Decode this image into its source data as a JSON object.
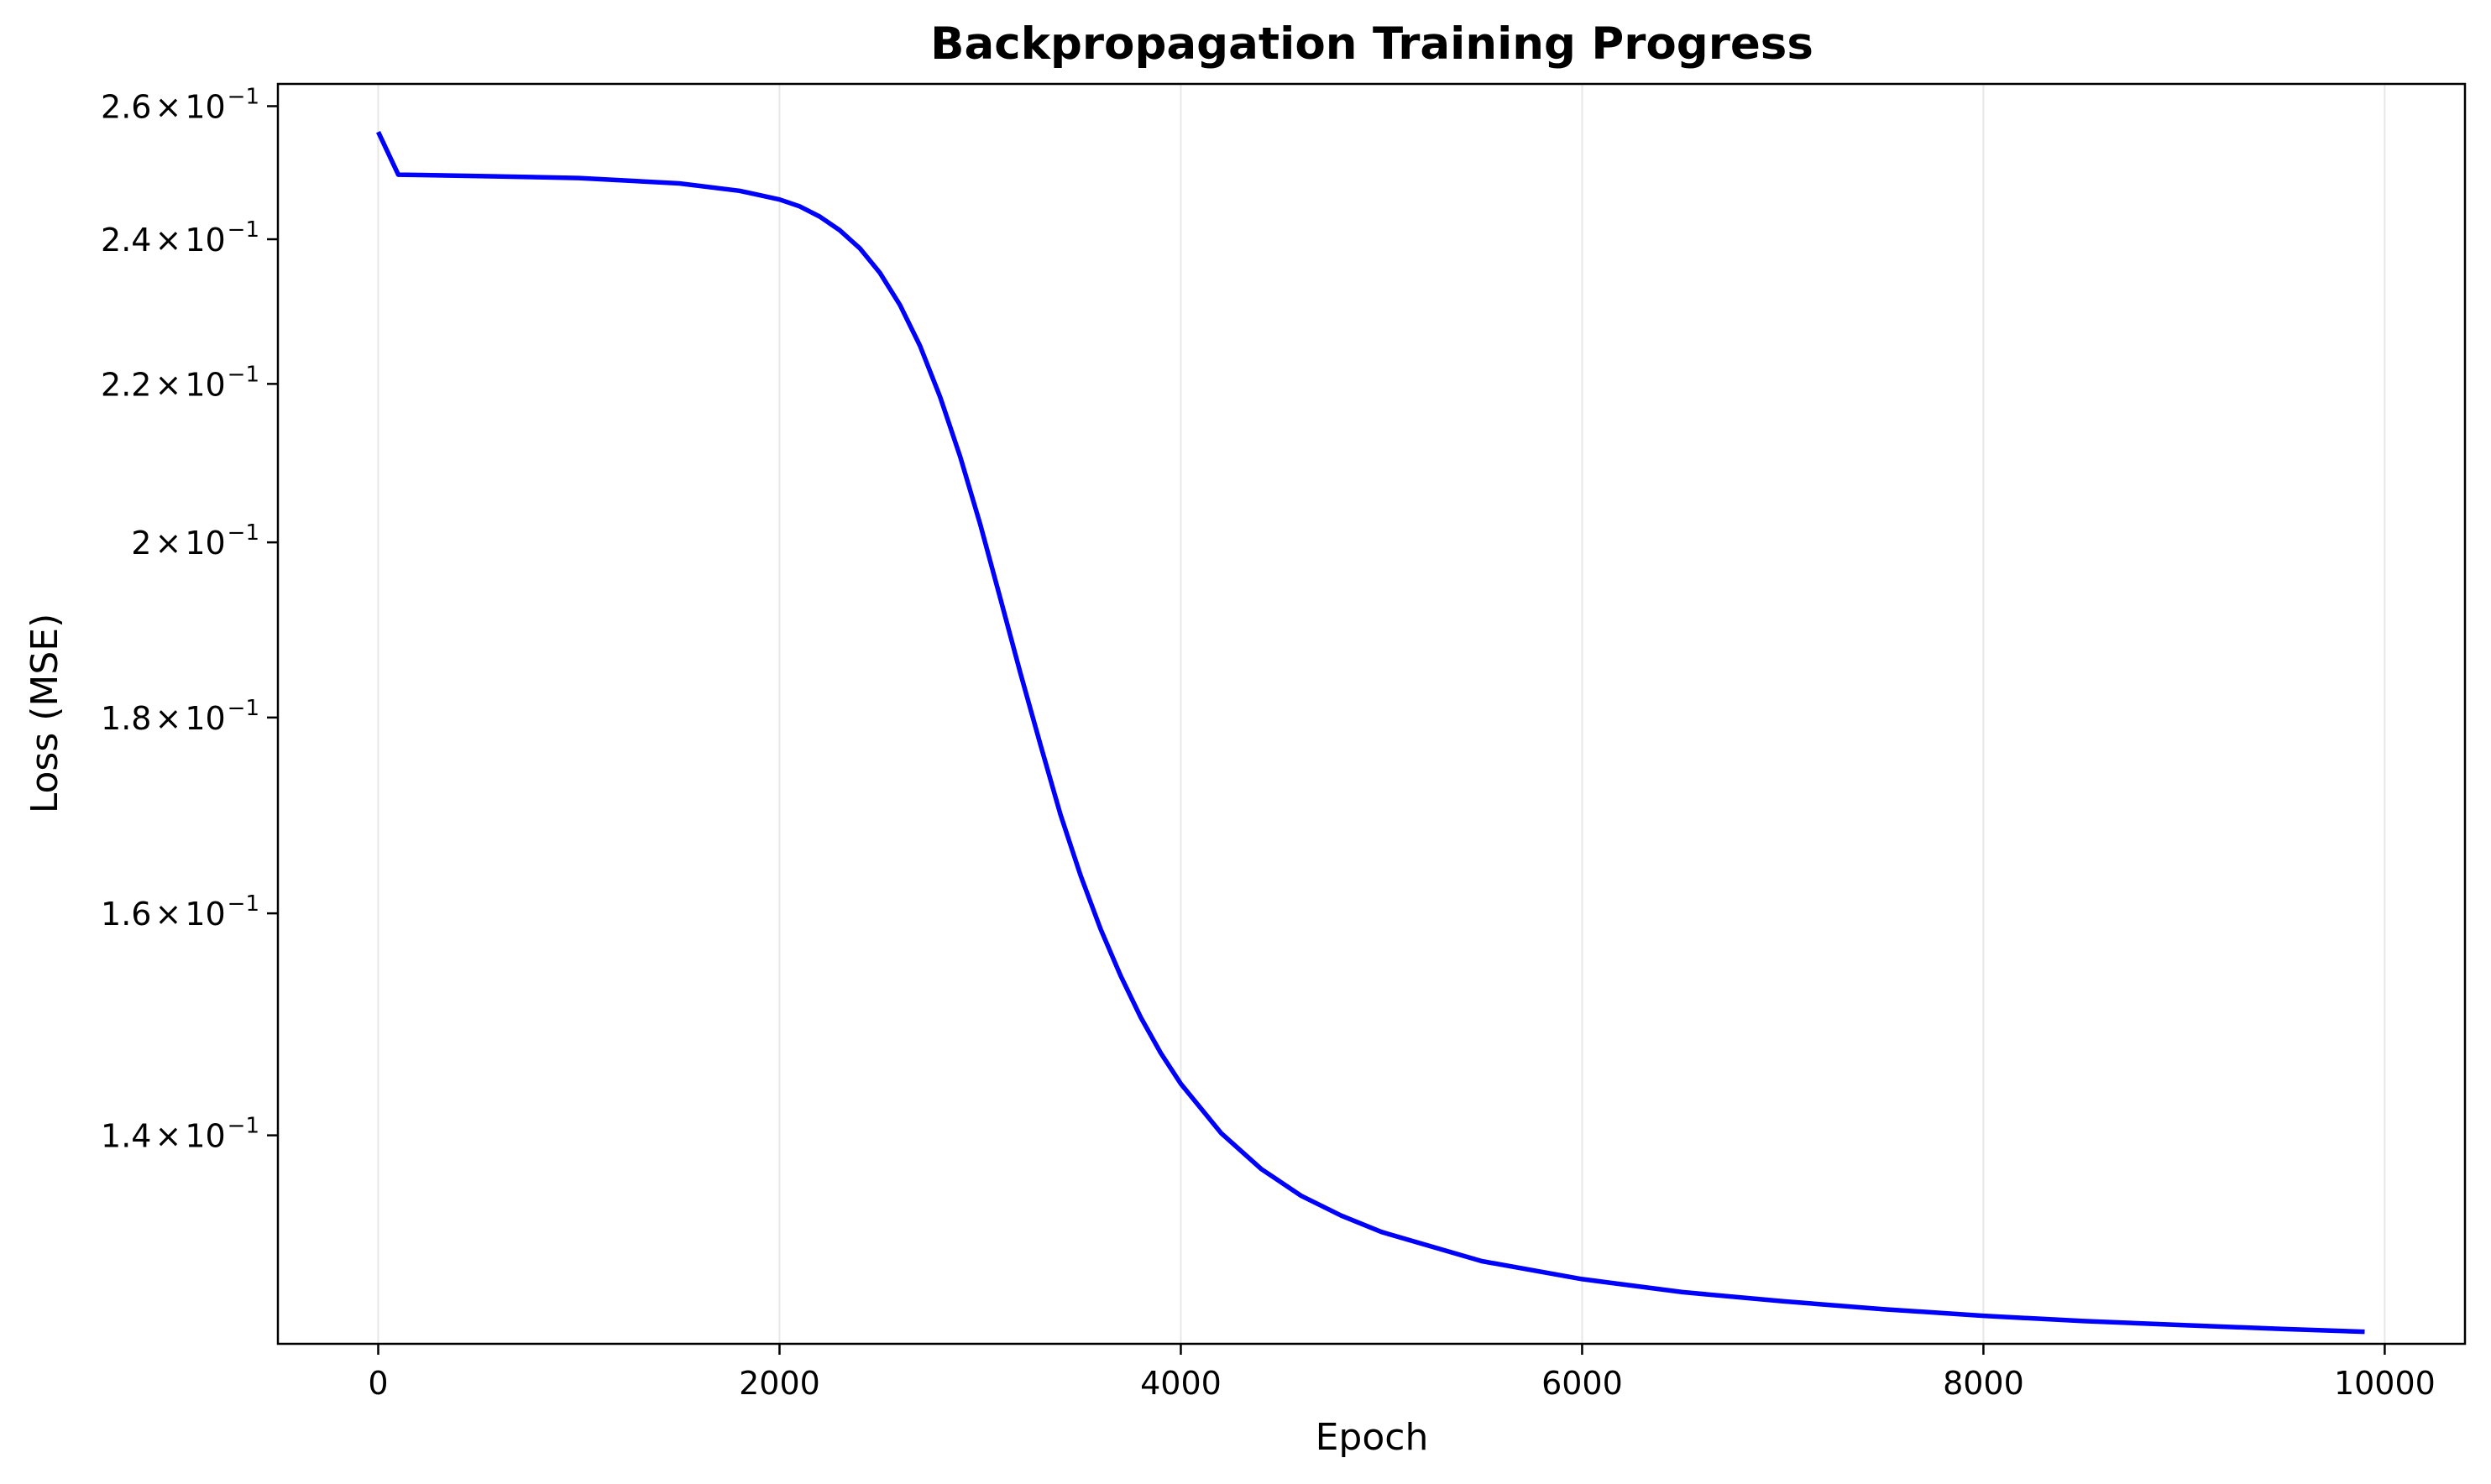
{
  "chart_data": {
    "type": "line",
    "title": "Backpropagation Training Progress",
    "xlabel": "Epoch",
    "ylabel": "Loss (MSE)",
    "yscale": "log",
    "grid": "x-axis only",
    "xlim": [
      -500,
      10400
    ],
    "ylim": [
      0.1235,
      0.2635
    ],
    "x_ticks": [
      {
        "value": 0,
        "label": "0"
      },
      {
        "value": 2000,
        "label": "2000"
      },
      {
        "value": 4000,
        "label": "4000"
      },
      {
        "value": 6000,
        "label": "6000"
      },
      {
        "value": 8000,
        "label": "8000"
      },
      {
        "value": 10000,
        "label": "10000"
      }
    ],
    "y_ticks": [
      {
        "value": 0.14,
        "mantissa": "1.4",
        "times": "×",
        "base": "10",
        "exponent": "−1"
      },
      {
        "value": 0.16,
        "mantissa": "1.6",
        "times": "×",
        "base": "10",
        "exponent": "−1"
      },
      {
        "value": 0.18,
        "mantissa": "1.8",
        "times": "×",
        "base": "10",
        "exponent": "−1"
      },
      {
        "value": 0.2,
        "mantissa": "2",
        "times": "×",
        "base": "10",
        "exponent": "−1"
      },
      {
        "value": 0.22,
        "mantissa": "2.2",
        "times": "×",
        "base": "10",
        "exponent": "−1"
      },
      {
        "value": 0.24,
        "mantissa": "2.4",
        "times": "×",
        "base": "10",
        "exponent": "−1"
      },
      {
        "value": 0.26,
        "mantissa": "2.6",
        "times": "×",
        "base": "10",
        "exponent": "−1"
      }
    ],
    "series": [
      {
        "color": "#0000ff",
        "x": [
          0,
          100,
          500,
          1000,
          1500,
          1800,
          2000,
          2100,
          2200,
          2300,
          2400,
          2500,
          2600,
          2700,
          2800,
          2900,
          3000,
          3100,
          3200,
          3300,
          3400,
          3500,
          3600,
          3700,
          3800,
          3900,
          4000,
          4200,
          4400,
          4600,
          4800,
          5000,
          5500,
          6000,
          6500,
          7000,
          7500,
          8000,
          8500,
          9000,
          9500,
          9900
        ],
        "y": [
          0.256,
          0.2495,
          0.2493,
          0.249,
          0.2482,
          0.2471,
          0.2458,
          0.2448,
          0.2433,
          0.2413,
          0.2387,
          0.2352,
          0.2307,
          0.2251,
          0.2183,
          0.2106,
          0.2022,
          0.1934,
          0.1849,
          0.1771,
          0.1698,
          0.1637,
          0.1585,
          0.1541,
          0.1503,
          0.1471,
          0.1444,
          0.1402,
          0.1372,
          0.135,
          0.1334,
          0.1321,
          0.1298,
          0.1284,
          0.1274,
          0.1267,
          0.1261,
          0.1256,
          0.1252,
          0.1249,
          0.1246,
          0.1244
        ]
      }
    ]
  }
}
